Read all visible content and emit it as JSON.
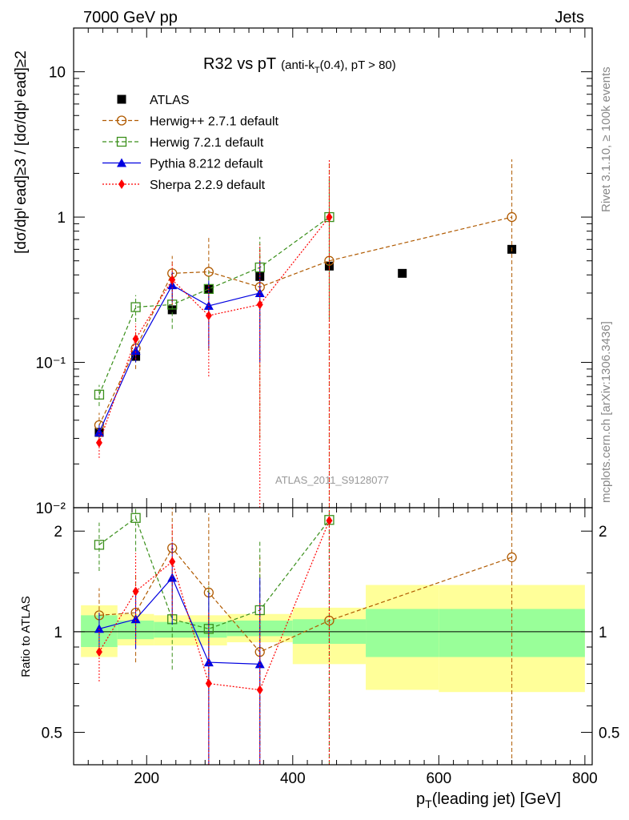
{
  "header": {
    "left": "7000 GeV pp",
    "right": "Jets",
    "title_main": "R32 vs pT",
    "title_sub_a": "(anti-k",
    "title_sub_b": "T",
    "title_sub_c": "(0.4), pT > 80)",
    "rivet": "Rivet 3.1.10, ≥ 100k events",
    "mcplots": "mcplots.cern.ch [arXiv:1306.3436]",
    "watermark": "ATLAS_2011_S9128077"
  },
  "axes": {
    "ylabel_main": "[dσ/dpᴵ ead]≥3 / [dσ/dpᴵ ead]≥2",
    "ylabel_ratio": "Ratio to ATLAS",
    "xlabel_a": "p",
    "xlabel_b": "T",
    "xlabel_c": "(leading jet) [GeV]",
    "x_ticks": [
      "200",
      "400",
      "600",
      "800"
    ],
    "y_main_ticks": [
      "10",
      "1",
      "10⁻¹",
      "10⁻²"
    ],
    "y_ratio_ticks": [
      "2",
      "1",
      "0.5"
    ]
  },
  "legend": [
    {
      "key": "atlas",
      "label": "ATLAS"
    },
    {
      "key": "herwigpp",
      "label": "Herwig++ 2.7.1 default"
    },
    {
      "key": "herwig7",
      "label": "Herwig 7.2.1 default"
    },
    {
      "key": "pythia",
      "label": "Pythia 8.212 default"
    },
    {
      "key": "sherpa",
      "label": "Sherpa 2.2.9 default"
    }
  ],
  "colors": {
    "atlas": "#000000",
    "herwigpp": "#b05a00",
    "herwig7": "#3a8f1a",
    "pythia": "#0000e0",
    "sherpa": "#ff0000",
    "band_inner": "#99ff99",
    "band_outer": "#ffff99"
  },
  "chart_data": {
    "type": "scatter",
    "title": "R32 vs pT (anti-kT(0.4), pT > 80)",
    "xlabel": "pT(leading jet) [GeV]",
    "ylabel": "[dσ/dpT lead]≥3 / [dσ/dpT lead]≥2",
    "xlim": [
      100,
      810
    ],
    "ylim": [
      0.01,
      20
    ],
    "yscale": "log",
    "ratio_ylim": [
      0.4,
      2.35
    ],
    "bins": [
      [
        110,
        160
      ],
      [
        160,
        210
      ],
      [
        210,
        260
      ],
      [
        260,
        310
      ],
      [
        310,
        400
      ],
      [
        400,
        500
      ],
      [
        500,
        600
      ],
      [
        600,
        800
      ]
    ],
    "bands": [
      {
        "x": [
          110,
          160
        ],
        "inner": [
          0.9,
          1.12
        ],
        "outer": [
          0.84,
          1.2
        ]
      },
      {
        "x": [
          160,
          210
        ],
        "inner": [
          0.95,
          1.08
        ],
        "outer": [
          0.91,
          1.13
        ]
      },
      {
        "x": [
          210,
          260
        ],
        "inner": [
          0.96,
          1.07
        ],
        "outer": [
          0.91,
          1.12
        ]
      },
      {
        "x": [
          260,
          310
        ],
        "inner": [
          0.96,
          1.07
        ],
        "outer": [
          0.91,
          1.12
        ]
      },
      {
        "x": [
          310,
          400
        ],
        "inner": [
          0.97,
          1.08
        ],
        "outer": [
          0.93,
          1.13
        ]
      },
      {
        "x": [
          400,
          500
        ],
        "inner": [
          0.92,
          1.09
        ],
        "outer": [
          0.8,
          1.18
        ]
      },
      {
        "x": [
          500,
          600
        ],
        "inner": [
          0.84,
          1.17
        ],
        "outer": [
          0.67,
          1.38
        ]
      },
      {
        "x": [
          600,
          800
        ],
        "inner": [
          0.84,
          1.17
        ],
        "outer": [
          0.66,
          1.38
        ]
      }
    ],
    "series": [
      {
        "key": "atlas",
        "name": "ATLAS",
        "marker": "square-filled",
        "x": [
          135,
          185,
          235,
          285,
          355,
          450,
          550,
          700
        ],
        "y": [
          0.033,
          0.11,
          0.23,
          0.32,
          0.39,
          0.46,
          0.41,
          0.6
        ],
        "ratio": [
          1,
          1,
          1,
          1,
          1,
          1,
          1,
          1
        ],
        "ratio_err": [
          0,
          0,
          0,
          0,
          0,
          0,
          0,
          0
        ]
      },
      {
        "key": "herwigpp",
        "name": "Herwig++ 2.7.1 default",
        "marker": "circle-open",
        "dash": "5,3",
        "x": [
          135,
          185,
          235,
          285,
          355,
          450,
          700
        ],
        "y": [
          0.037,
          0.125,
          0.41,
          0.42,
          0.33,
          0.5,
          1.0
        ],
        "err": [
          0.008,
          0.035,
          0.13,
          0.3,
          0.3,
          1.9,
          1.5
        ],
        "ratio": [
          1.12,
          1.14,
          1.78,
          1.31,
          0.87,
          1.08,
          1.67
        ],
        "ratio_err": [
          0.23,
          0.33,
          0.58,
          0.95,
          0.8,
          3.5,
          2.8
        ]
      },
      {
        "key": "herwig7",
        "name": "Herwig 7.2.1 default",
        "marker": "square-open",
        "dash": "5,3",
        "x": [
          135,
          185,
          235,
          285,
          355,
          450
        ],
        "y": [
          0.06,
          0.24,
          0.25,
          0.32,
          0.45,
          1.0
        ],
        "err": [
          0.01,
          0.05,
          0.08,
          0.1,
          0.28,
          0.8
        ],
        "ratio": [
          1.82,
          2.19,
          1.09,
          1.02,
          1.16,
          2.16
        ],
        "ratio_err": [
          0.3,
          0.45,
          0.32,
          0.35,
          0.7,
          2.0
        ]
      },
      {
        "key": "pythia",
        "name": "Pythia 8.212 default",
        "marker": "triangle",
        "dash": "",
        "x": [
          135,
          185,
          235,
          285,
          355
        ],
        "y": [
          0.033,
          0.12,
          0.34,
          0.245,
          0.3
        ],
        "err": [
          0.004,
          0.02,
          0.08,
          0.12,
          0.2
        ],
        "ratio": [
          1.02,
          1.09,
          1.45,
          0.81,
          0.8
        ],
        "ratio_err": [
          0.12,
          0.2,
          0.4,
          0.5,
          0.65
        ]
      },
      {
        "key": "sherpa",
        "name": "Sherpa 2.2.9 default",
        "marker": "diamond",
        "dash": "2,2",
        "x": [
          135,
          185,
          235,
          285,
          355,
          450
        ],
        "y": [
          0.028,
          0.145,
          0.37,
          0.21,
          0.25,
          1.0
        ],
        "err": [
          0.006,
          0.04,
          0.12,
          0.13,
          0.4,
          1.5
        ],
        "ratio": [
          0.87,
          1.32,
          1.62,
          0.7,
          0.67,
          2.15
        ],
        "ratio_err": [
          0.16,
          0.4,
          0.5,
          0.45,
          0.55,
          3.0
        ]
      }
    ]
  }
}
